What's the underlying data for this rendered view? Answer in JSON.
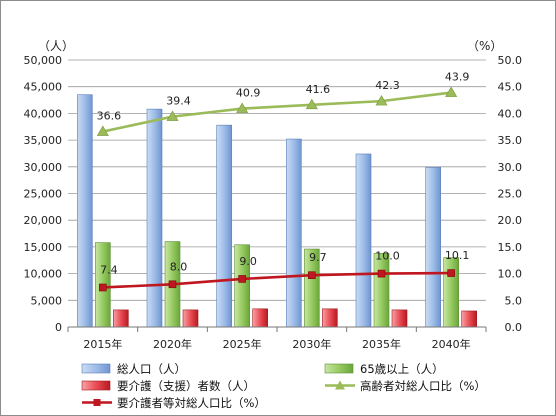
{
  "chart_data": {
    "type": "bar",
    "categories": [
      "2015年",
      "2020年",
      "2025年",
      "2030年",
      "2035年",
      "2040年"
    ],
    "left_axis": {
      "unit": "（人）",
      "ylim": [
        0,
        50000
      ],
      "step": 5000,
      "ticks": [
        "0",
        "5,000",
        "10,000",
        "15,000",
        "20,000",
        "25,000",
        "30,000",
        "35,000",
        "40,000",
        "45,000",
        "50,000"
      ]
    },
    "right_axis": {
      "unit": "（%）",
      "ylim": [
        0,
        50
      ],
      "step": 5,
      "ticks": [
        "0.0",
        "5.0",
        "10.0",
        "15.0",
        "20.0",
        "25.0",
        "30.0",
        "35.0",
        "40.0",
        "45.0",
        "50.0"
      ]
    },
    "series": [
      {
        "name": "総人口（人）",
        "kind": "bar",
        "axis": "left",
        "color": "#9ab8e6",
        "values": [
          43500,
          40800,
          37800,
          35200,
          32400,
          29900
        ]
      },
      {
        "name": "65歳以上（人）",
        "kind": "bar",
        "axis": "left",
        "color": "#92c85c",
        "values": [
          15800,
          16000,
          15400,
          14600,
          13800,
          13000
        ]
      },
      {
        "name": "要介護（支援）者数（人）",
        "kind": "bar",
        "axis": "left",
        "color": "#e8424a",
        "values": [
          3200,
          3200,
          3400,
          3400,
          3200,
          3000
        ]
      },
      {
        "name": "高齢者対総人口比（%）",
        "kind": "line",
        "axis": "right",
        "color": "#9bbb59",
        "marker": "triangle",
        "values": [
          36.6,
          39.4,
          40.9,
          41.6,
          42.3,
          43.9
        ],
        "labels": [
          "36.6",
          "39.4",
          "40.9",
          "41.6",
          "42.3",
          "43.9"
        ]
      },
      {
        "name": "要介護者等対総人口比（%）",
        "kind": "line",
        "axis": "right",
        "color": "#c0161f",
        "marker": "square",
        "values": [
          7.4,
          8.0,
          9.0,
          9.7,
          10.0,
          10.1
        ],
        "labels": [
          "7.4",
          "8.0",
          "9.0",
          "9.7",
          "10.0",
          "10.1"
        ]
      }
    ],
    "grid": true,
    "legend_position": "bottom"
  }
}
